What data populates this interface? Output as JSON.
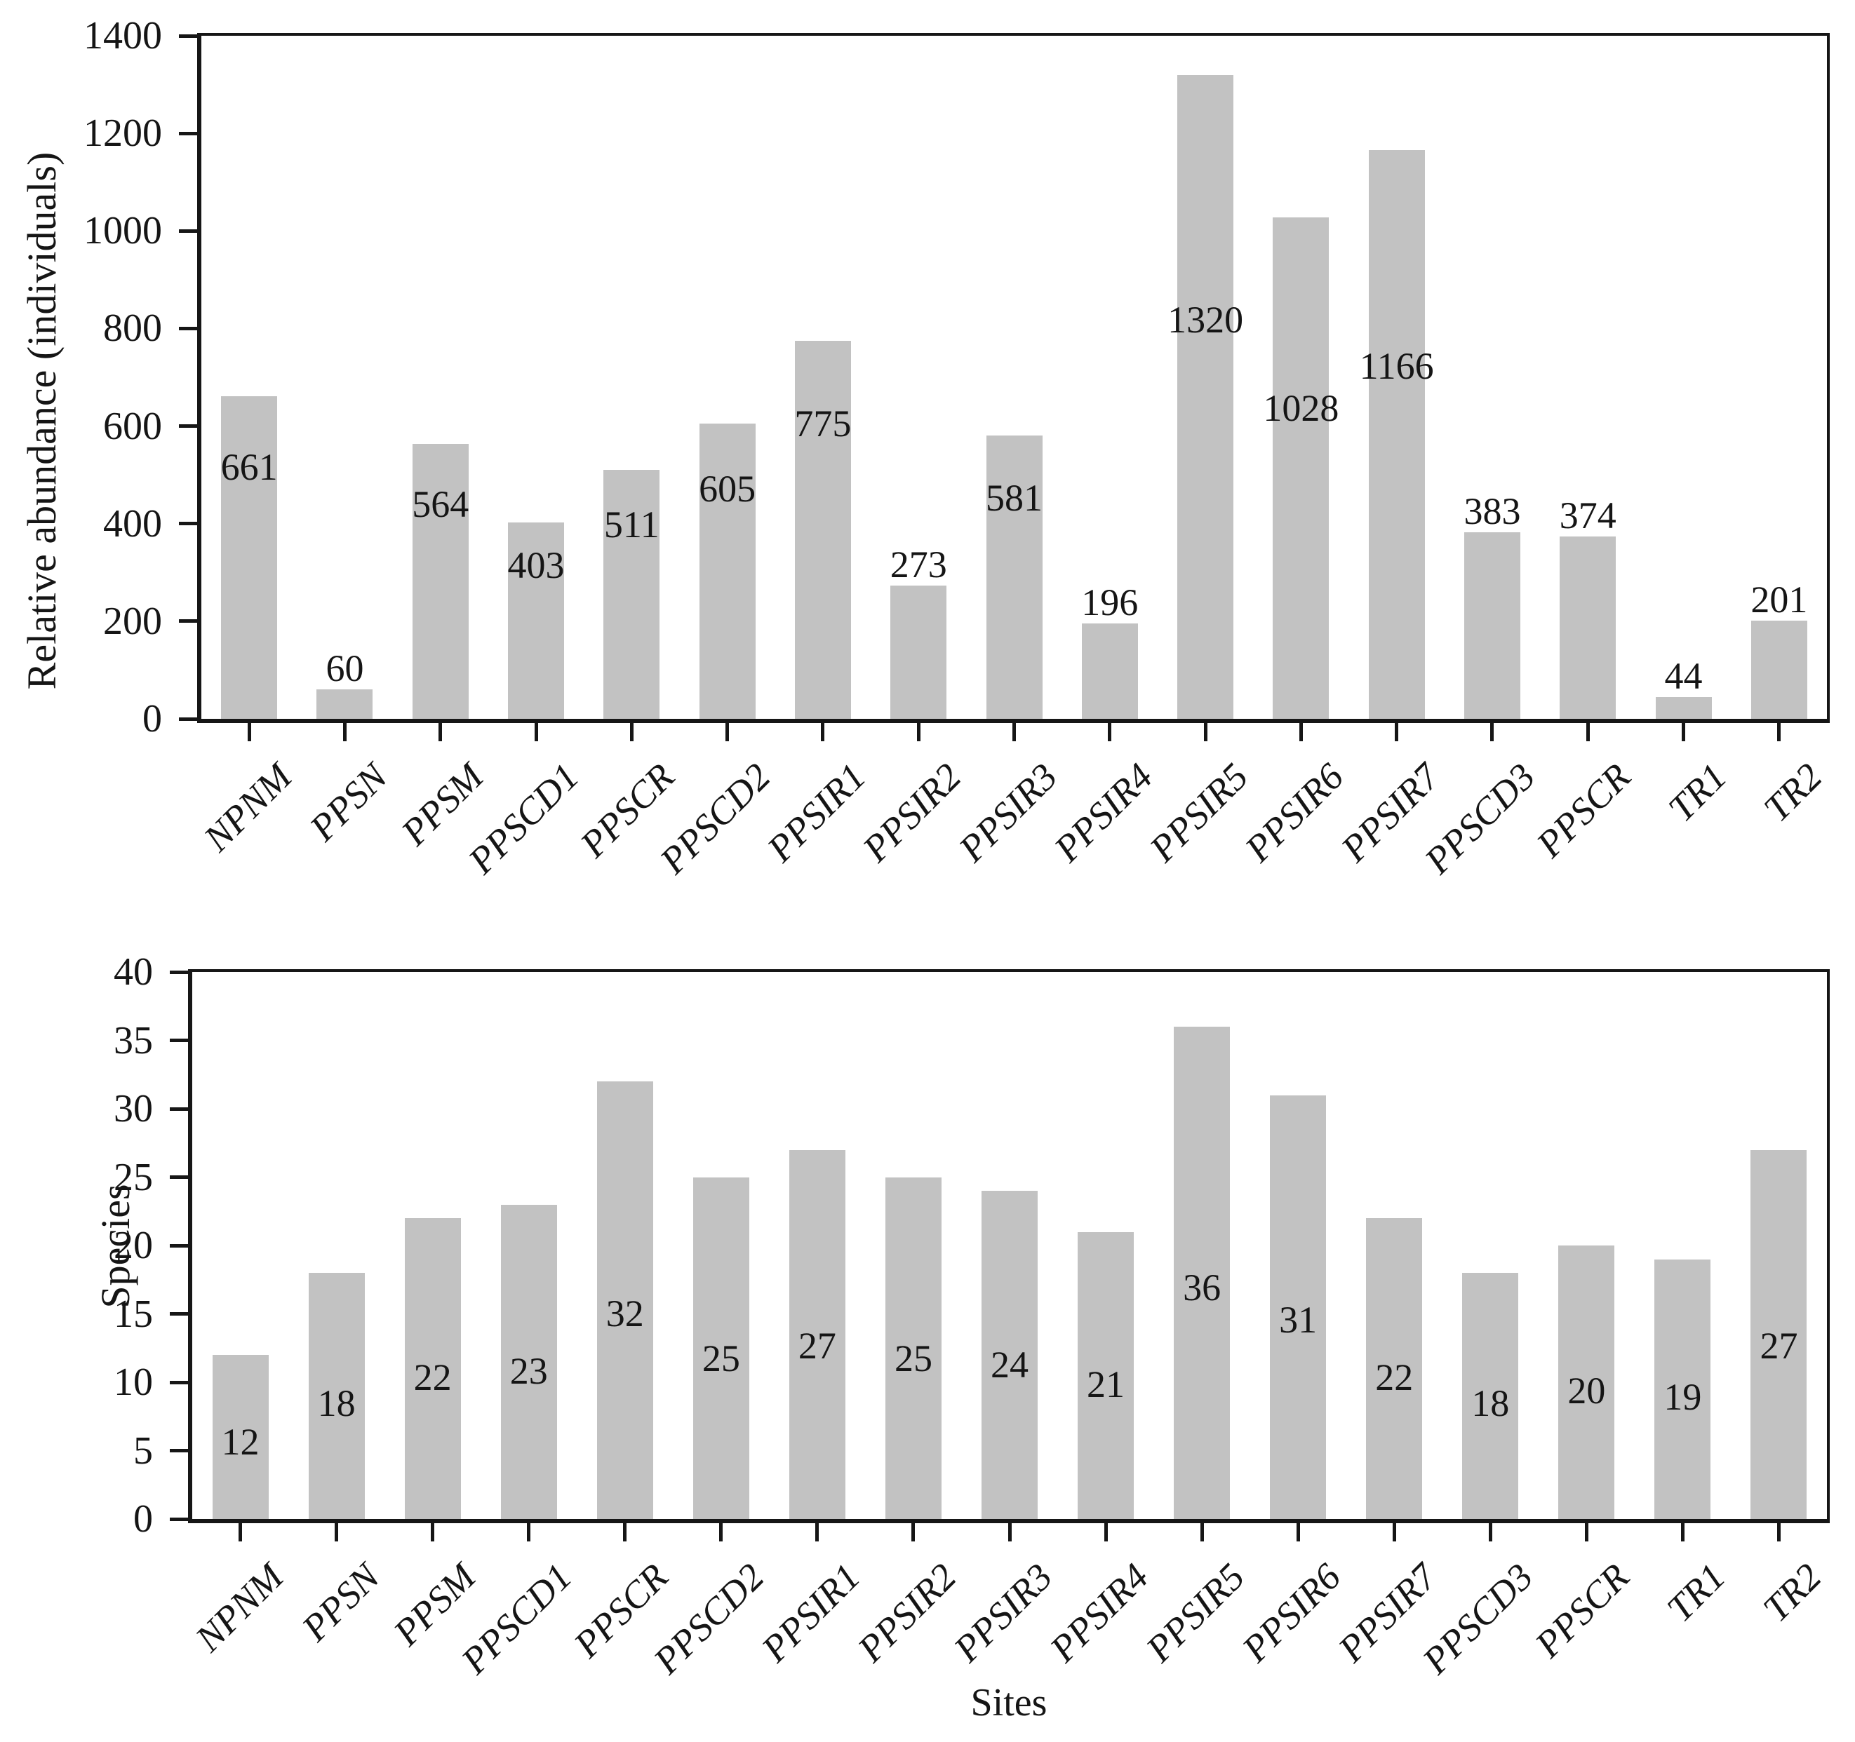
{
  "colors": {
    "bar_fill": "#c2c2c2",
    "axis": "#161616",
    "text": "#151515",
    "background": "#ffffff"
  },
  "chart_data": [
    {
      "type": "bar",
      "ylabel": "Relative abundance (individuals)",
      "categories": [
        "NPNM",
        "PPSN",
        "PPSM",
        "PPSCD1",
        "PPSCR",
        "PPSCD2",
        "PPSIR1",
        "PPSIR2",
        "PPSIR3",
        "PPSIR4",
        "PPSIR5",
        "PPSIR6",
        "PPSIR7",
        "PPSCD3",
        "PPSCR",
        "TR1",
        "TR2"
      ],
      "values": [
        661,
        60,
        564,
        403,
        511,
        605,
        775,
        273,
        581,
        196,
        1320,
        1028,
        1166,
        383,
        374,
        44,
        201
      ],
      "data_labels": true,
      "ylim": [
        0,
        1400
      ],
      "yticks": [
        0,
        200,
        400,
        600,
        800,
        1000,
        1200,
        1400
      ],
      "grid": false,
      "legend": "none"
    },
    {
      "type": "bar",
      "ylabel": "Species",
      "xlabel": "Sites",
      "categories": [
        "NPNM",
        "PPSN",
        "PPSM",
        "PPSCD1",
        "PPSCR",
        "PPSCD2",
        "PPSIR1",
        "PPSIR2",
        "PPSIR3",
        "PPSIR4",
        "PPSIR5",
        "PPSIR6",
        "PPSIR7",
        "PPSCD3",
        "PPSCR",
        "TR1",
        "TR2"
      ],
      "values": [
        12,
        18,
        22,
        23,
        32,
        25,
        27,
        25,
        24,
        21,
        36,
        31,
        22,
        18,
        20,
        19,
        27
      ],
      "data_labels": true,
      "ylim": [
        0,
        40
      ],
      "yticks": [
        0,
        5,
        10,
        15,
        20,
        25,
        30,
        35,
        40
      ],
      "grid": false,
      "legend": "none"
    }
  ]
}
